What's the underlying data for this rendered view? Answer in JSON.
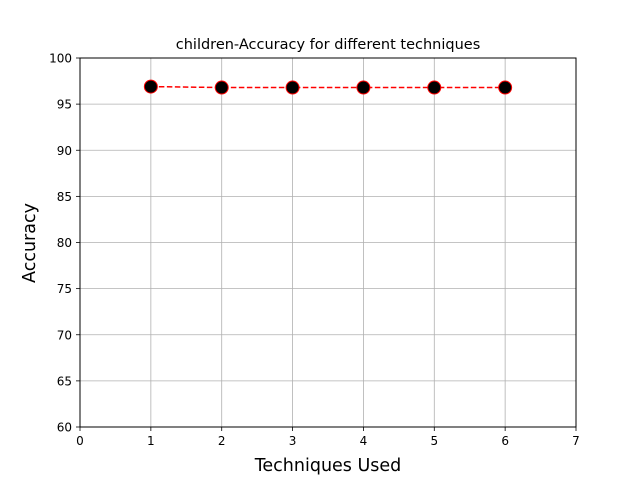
{
  "chart_data": {
    "type": "line",
    "title": "children-Accuracy for different techniques",
    "xlabel": "Techniques Used",
    "ylabel": "Accuracy",
    "xlim": [
      0,
      7
    ],
    "ylim": [
      60,
      100
    ],
    "x_ticks": [
      "0",
      "1",
      "2",
      "3",
      "4",
      "5",
      "6",
      "7"
    ],
    "y_ticks": [
      "60",
      "65",
      "70",
      "75",
      "80",
      "85",
      "90",
      "95",
      "100"
    ],
    "grid": true,
    "series": [
      {
        "x": [
          1,
          2,
          3,
          4,
          5,
          6
        ],
        "y": [
          96.9,
          96.8,
          96.8,
          96.8,
          96.8,
          96.8
        ],
        "line_color": "#ff0000",
        "line_style": "dashed",
        "marker": "circle",
        "marker_face_color": "#000000",
        "marker_edge_color": "#ff0000"
      }
    ]
  }
}
